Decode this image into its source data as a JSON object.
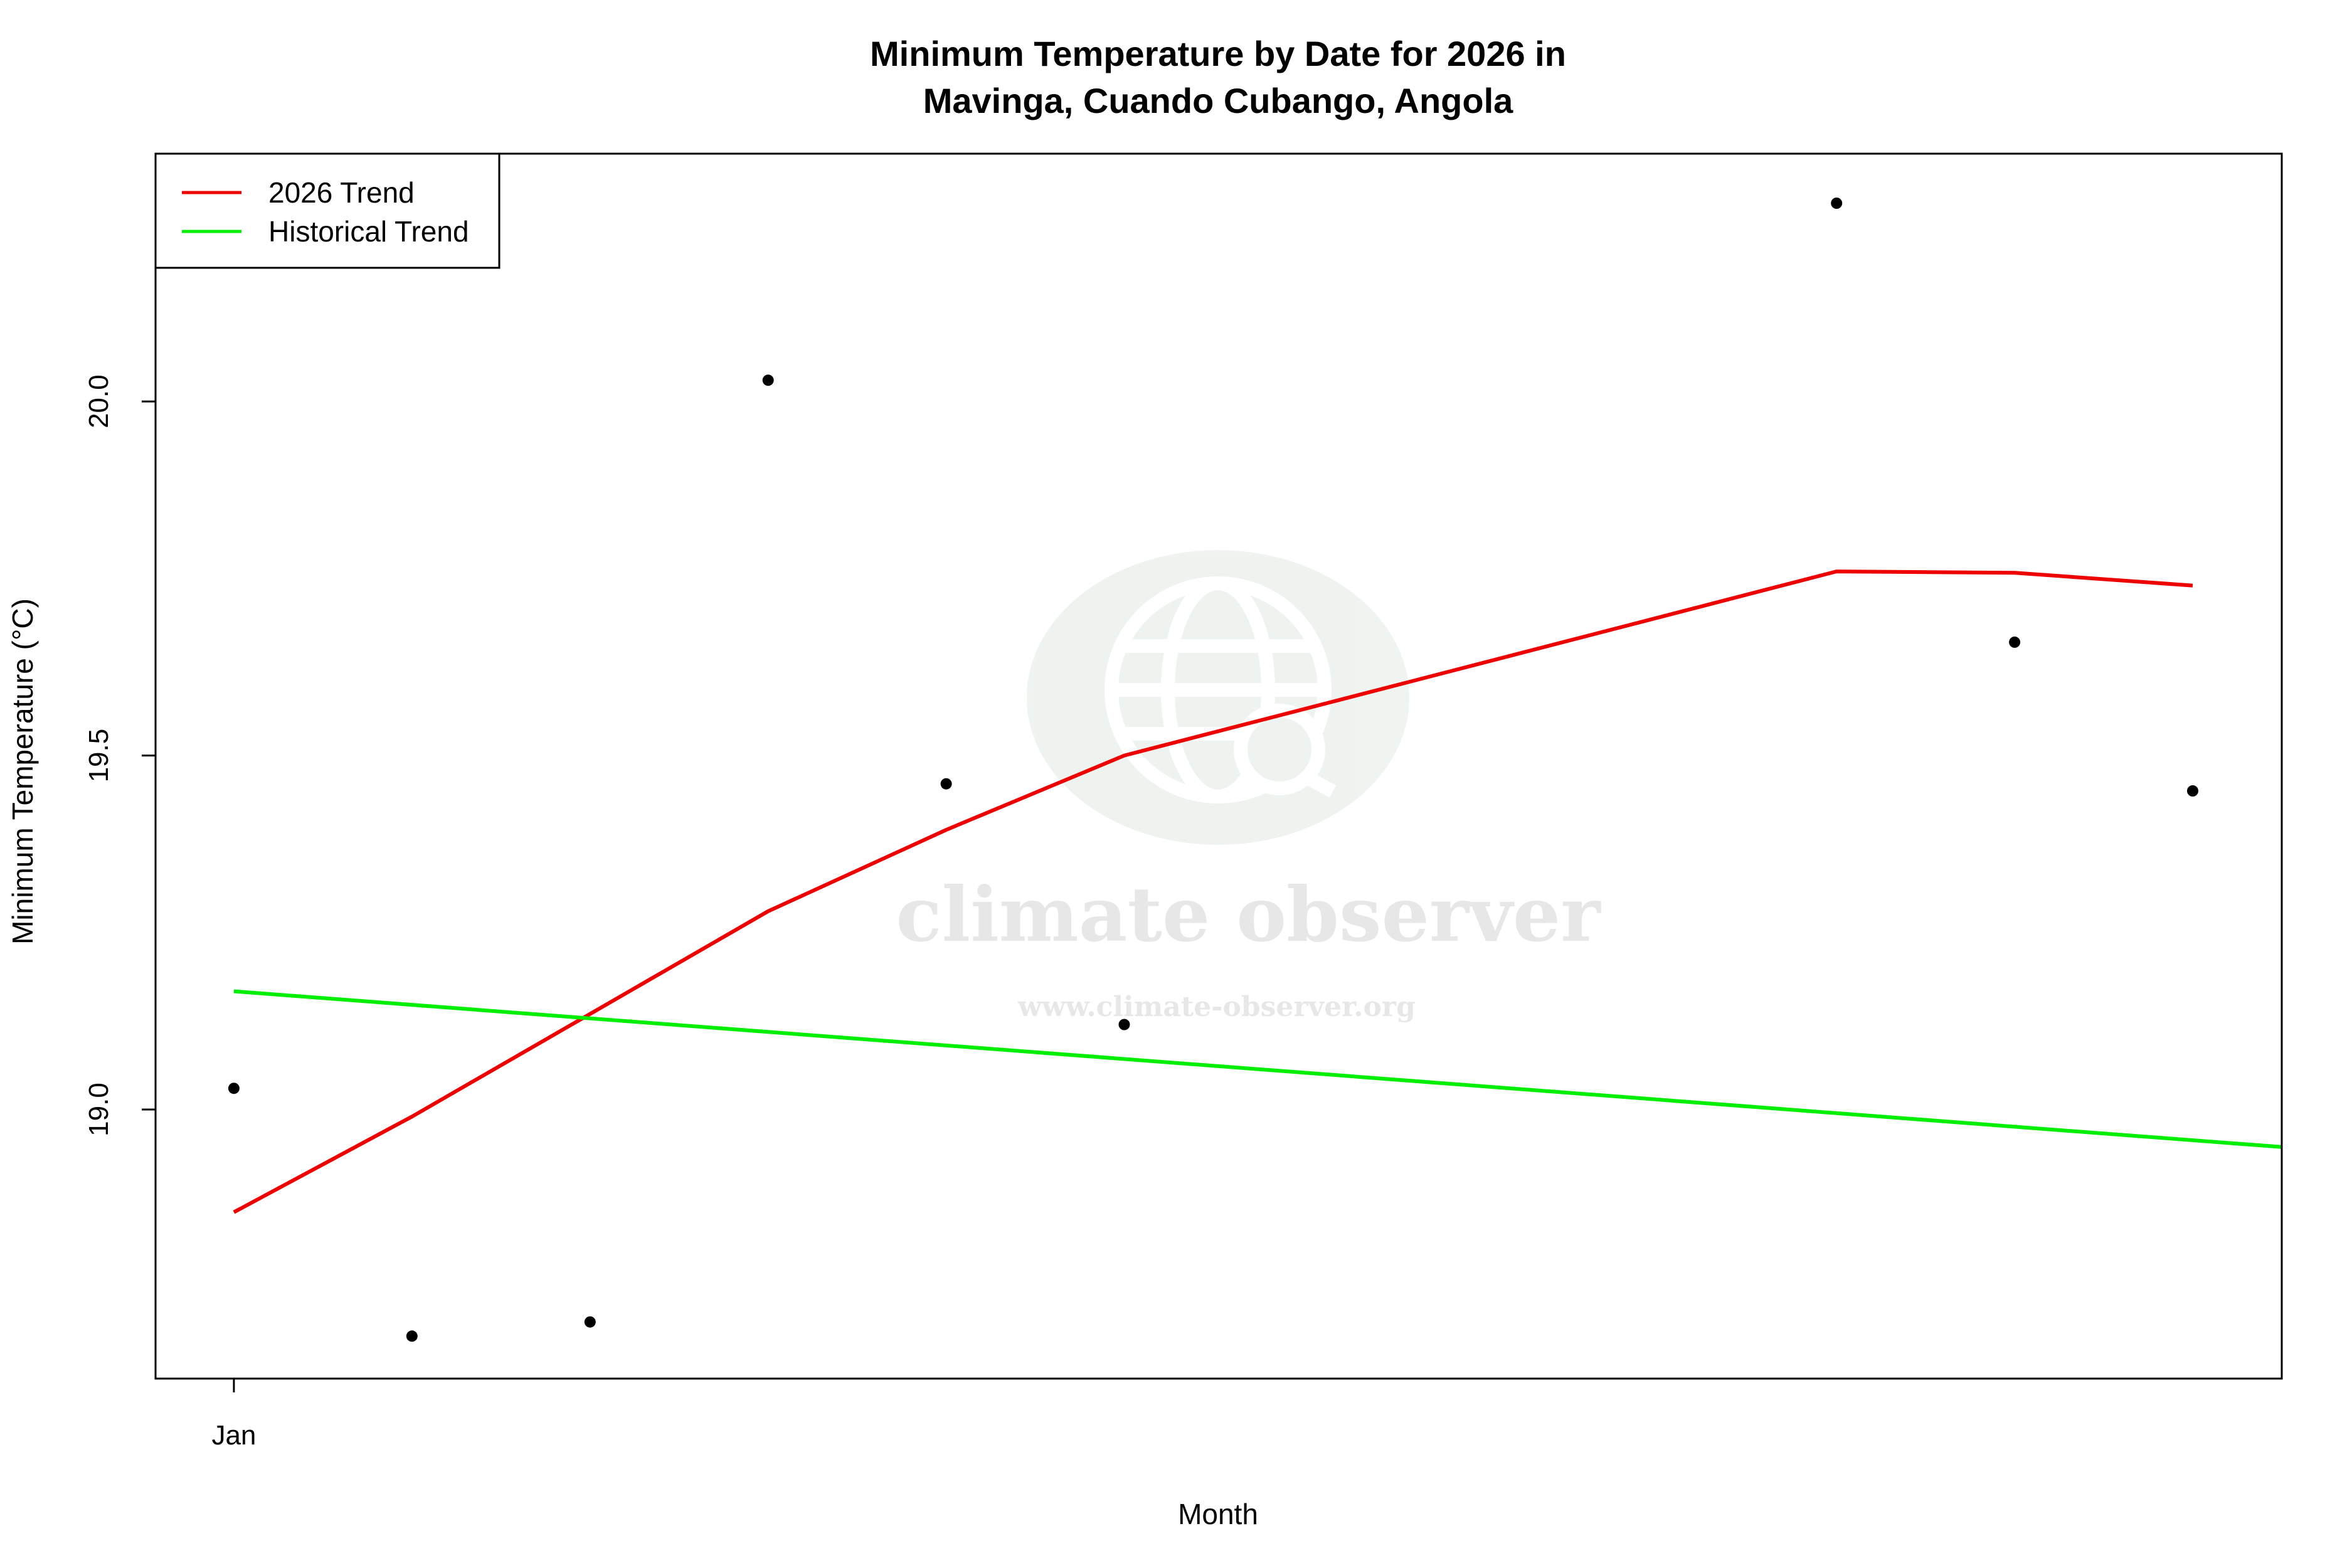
{
  "chart_data": {
    "type": "scatter",
    "title_line1": "Minimum Temperature by Date for 2026 in",
    "title_line2": "Mavinga, Cuando Cubango, Angola",
    "xlabel": "Month",
    "ylabel": "Minimum Temperature (°C)",
    "x_tick_labels": [
      {
        "x": 0,
        "label": "Jan"
      }
    ],
    "y_ticks": [
      19.0,
      19.5,
      20.0
    ],
    "y_tick_labels": [
      "19.0",
      "19.5",
      "20.0"
    ],
    "xlim": [
      -0.44,
      11.5
    ],
    "ylim": [
      18.62,
      20.35
    ],
    "legend_position": "top-left",
    "grid": false,
    "points": {
      "x": [
        0,
        1,
        2,
        3,
        4,
        5,
        9,
        10,
        11
      ],
      "y": [
        19.03,
        18.68,
        18.7,
        20.03,
        19.46,
        19.12,
        20.28,
        19.66,
        19.45
      ],
      "color": "#000000"
    },
    "series": [
      {
        "name": "2026 Trend",
        "color": "#ee0000",
        "x": [
          0,
          1,
          2,
          3,
          4,
          5,
          9,
          10,
          11
        ],
        "y": [
          18.855,
          18.99,
          19.135,
          19.28,
          19.395,
          19.5,
          19.76,
          19.758,
          19.74
        ]
      },
      {
        "name": "Historical Trend",
        "color": "#00ee00",
        "x": [
          0,
          11.5
        ],
        "y": [
          19.167,
          18.947
        ]
      }
    ],
    "watermark": {
      "name": "climate observer",
      "url": "www.climate-observer.org"
    }
  }
}
